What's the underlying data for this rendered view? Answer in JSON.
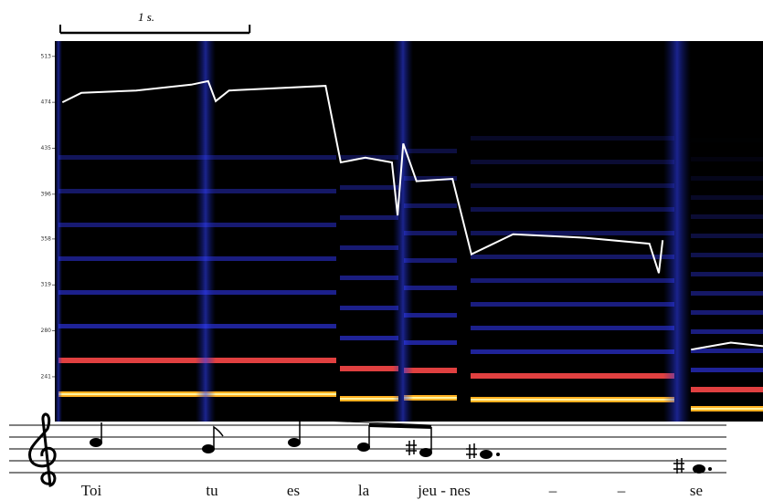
{
  "chart_data": {
    "type": "line",
    "scalebar": {
      "value": 1,
      "label": "1 s."
    },
    "xlim": [
      0,
      3.74
    ],
    "ylim": [
      203,
      526
    ],
    "yticks": [
      241,
      280,
      319,
      358,
      396,
      435,
      474,
      513
    ],
    "x": [
      0.04,
      0.14,
      0.43,
      0.72,
      0.81,
      0.85,
      0.92,
      1.43,
      1.51,
      1.64,
      1.78,
      1.81,
      1.84,
      1.91,
      2.1,
      2.2,
      2.42,
      2.8,
      3.14,
      3.19,
      3.21,
      3.28,
      3.36,
      3.57,
      3.74
    ],
    "values": [
      474,
      482,
      484,
      489,
      492,
      475,
      484,
      488,
      423,
      427,
      423,
      378,
      439,
      407,
      409,
      345,
      362,
      359,
      354,
      329,
      357,
      null,
      264,
      270,
      267
    ],
    "color": "#ffffff",
    "lyrics": [
      "Toi",
      "tu",
      "es",
      "la",
      "jeu - nes",
      "–",
      "–",
      "se"
    ]
  }
}
